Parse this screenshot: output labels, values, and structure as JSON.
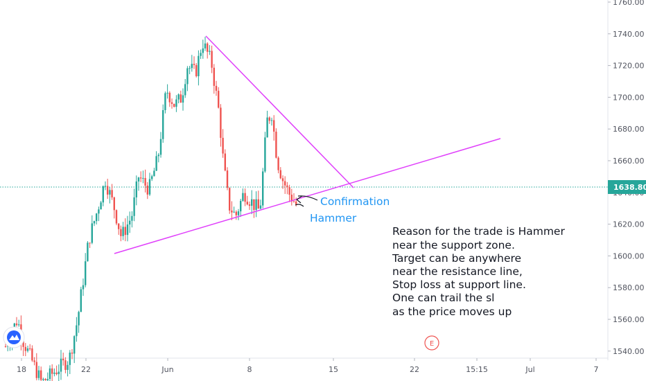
{
  "chart_data": {
    "type": "candlestick",
    "title": "",
    "xlabel": "",
    "ylabel": "",
    "ylim": [
      1526,
      1762
    ],
    "grid": false,
    "colors": {
      "up": "#26a69a",
      "down": "#ef5350",
      "trendline": "#e040fb",
      "annotation": "#2196f3",
      "price_line": "#26a69a",
      "earnings": "#ef5350"
    },
    "y_ticks": [
      "1760.00",
      "1740.00",
      "1720.00",
      "1700.00",
      "1680.00",
      "1660.00",
      "1640.00",
      "1620.00",
      "1600.00",
      "1580.00",
      "1560.00",
      "1540.00"
    ],
    "x_ticks": [
      "18",
      "22",
      "Jun",
      "8",
      "15",
      "22",
      "15:15",
      "Jul",
      "7"
    ],
    "current_price": "1638.80",
    "annotations": {
      "confirmation": "Confirmation",
      "hammer": "Hammer",
      "earnings_marker": "E"
    },
    "note_lines": [
      "Reason for the trade is Hammer",
      "near the support zone.",
      "Target can be anywhere",
      "near the resistance line,",
      "Stop loss at support line.",
      "One can trail the sl",
      "as the price moves up"
    ],
    "trendlines": [
      {
        "name": "support",
        "start": [
          0.0,
          1596
        ],
        "end": [
          1.0,
          1670
        ]
      },
      {
        "name": "resistance",
        "start": [
          0.0,
          1737
        ],
        "end": [
          1.0,
          1638
        ]
      }
    ]
  }
}
